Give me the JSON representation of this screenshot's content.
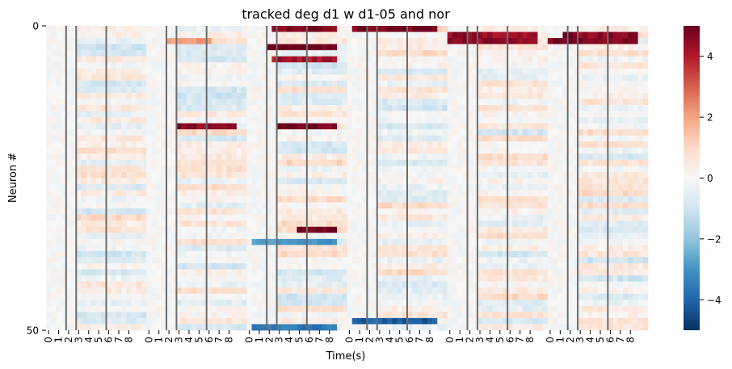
{
  "chart_data": {
    "type": "heatmap",
    "title": "tracked deg d1 w d1-05 and nor",
    "xlabel": "Time(s)",
    "ylabel": "Neuron #",
    "y_tick_labels": [
      "0",
      "50"
    ],
    "n_rows": 50,
    "panels": 6,
    "bins_per_panel": 20,
    "x_tick_labels": [
      "0",
      "1",
      "2",
      "3",
      "4",
      "5",
      "6",
      "7",
      "8"
    ],
    "colormap": "RdBu_r",
    "colorbar": {
      "range": [
        -5,
        5
      ],
      "ticks": [
        "4",
        "2",
        "0",
        "−2",
        "−4"
      ],
      "tick_values": [
        4,
        2,
        0,
        -2,
        -4
      ]
    },
    "event_lines_seconds": [
      2,
      3,
      6
    ],
    "strong_features": [
      {
        "panel": 1,
        "row": 2,
        "from_s": 2.0,
        "to_s": 6.5,
        "value": 2.2
      },
      {
        "panel": 1,
        "row": 16,
        "from_s": 3.0,
        "to_s": 9.0,
        "value": 4.5
      },
      {
        "panel": 2,
        "row": 0,
        "from_s": 2.3,
        "to_s": 9.0,
        "value": 4.6
      },
      {
        "panel": 2,
        "row": 3,
        "from_s": 2.0,
        "to_s": 9.0,
        "value": 5.0
      },
      {
        "panel": 2,
        "row": 5,
        "from_s": 2.5,
        "to_s": 9.0,
        "value": 4.2
      },
      {
        "panel": 2,
        "row": 16,
        "from_s": 3.0,
        "to_s": 9.0,
        "value": 4.8
      },
      {
        "panel": 2,
        "row": 33,
        "from_s": 5.0,
        "to_s": 9.0,
        "value": 5.0
      },
      {
        "panel": 2,
        "row": 35,
        "from_s": 0.5,
        "to_s": 9.0,
        "value": -3.0
      },
      {
        "panel": 2,
        "row": 49,
        "from_s": 0.5,
        "to_s": 9.0,
        "value": -3.6
      },
      {
        "panel": 3,
        "row": 0,
        "from_s": 0.5,
        "to_s": 9.0,
        "value": 4.8
      },
      {
        "panel": 3,
        "row": 48,
        "from_s": 0.5,
        "to_s": 9.0,
        "value": -4.2
      },
      {
        "panel": 4,
        "row": 1,
        "from_s": 0.0,
        "to_s": 9.0,
        "value": 4.4
      },
      {
        "panel": 4,
        "row": 2,
        "from_s": 0.0,
        "to_s": 9.0,
        "value": 4.5
      },
      {
        "panel": 5,
        "row": 1,
        "from_s": 1.5,
        "to_s": 9.0,
        "value": 4.6
      },
      {
        "panel": 5,
        "row": 2,
        "from_s": 0.0,
        "to_s": 9.0,
        "value": 4.8
      }
    ]
  }
}
